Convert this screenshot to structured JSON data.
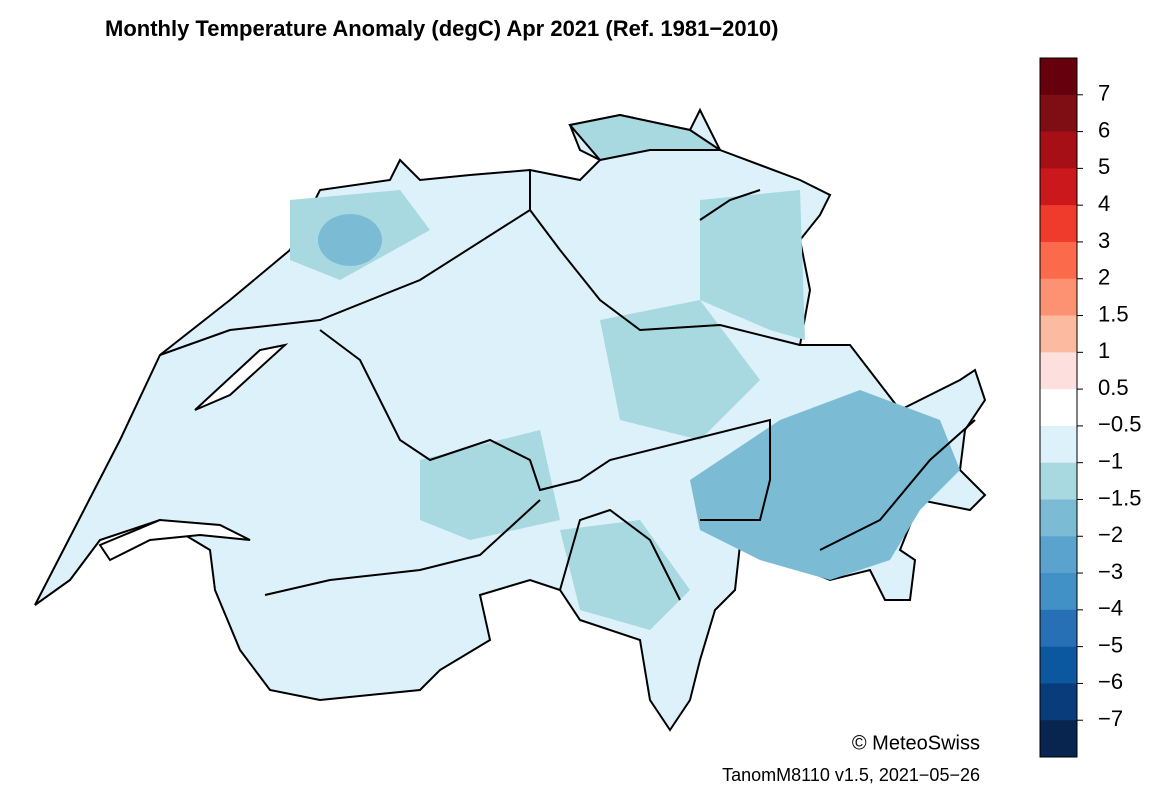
{
  "title": "Monthly Temperature Anomaly (degC) Apr 2021  (Ref. 1981−2010)",
  "colorbar": {
    "colors": [
      "#67000d",
      "#7f0e14",
      "#a50f15",
      "#cb181d",
      "#ef3b2c",
      "#fb6a4a",
      "#fc9272",
      "#fcbba1",
      "#fde0dd",
      "#ffffff",
      "#ddf1fa",
      "#a8d8e0",
      "#7bbcd4",
      "#5aa3cf",
      "#4190c6",
      "#2870b6",
      "#0c58a0",
      "#083c7a",
      "#08254f"
    ],
    "ticks": [
      7,
      6,
      5,
      4,
      3,
      2,
      1.5,
      1,
      0.5,
      {
        "value": -0.5,
        "label": "−0.5"
      },
      {
        "value": -1,
        "label": "−1"
      },
      {
        "value": -1.5,
        "label": "−1.5"
      },
      {
        "value": -2,
        "label": "−2"
      },
      {
        "value": -3,
        "label": "−3"
      },
      {
        "value": -4,
        "label": "−4"
      },
      {
        "value": -5,
        "label": "−5"
      },
      {
        "value": -6,
        "label": "−6"
      },
      {
        "value": -7,
        "label": "−7"
      }
    ]
  },
  "copyright": "© MeteoSwiss",
  "version": "TanomM8110 v1.5, 2021−05−26"
}
